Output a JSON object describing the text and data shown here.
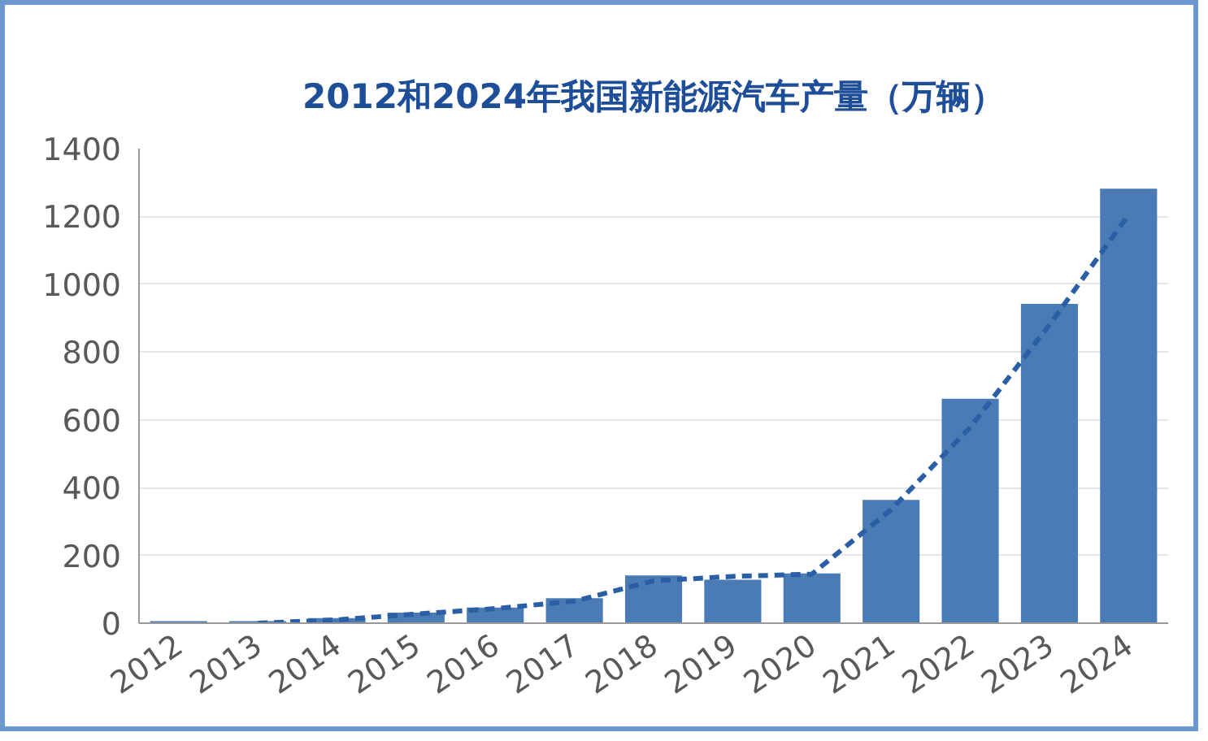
{
  "chart_data": {
    "type": "bar",
    "title": "2012和2024年我国新能源汽车产量（万辆）",
    "categories": [
      "2012",
      "2013",
      "2014",
      "2015",
      "2016",
      "2017",
      "2018",
      "2019",
      "2020",
      "2021",
      "2022",
      "2023",
      "2024"
    ],
    "series": [
      {
        "color": "#4a7bb5",
        "values": [
          6,
          6,
          15,
          31,
          46,
          74,
          141,
          128,
          147,
          364,
          662,
          942,
          1282
        ]
      },
      {
        "type": "line",
        "color": "#2a5fa6",
        "line_style": "dashed",
        "values": [
          null,
          0,
          10,
          27,
          43,
          65,
          125,
          138,
          145,
          335,
          578,
          880,
          1205
        ]
      }
    ],
    "ylim": [
      0,
      1400
    ],
    "yticks": [
      0,
      200,
      400,
      600,
      800,
      1000,
      1200,
      1400
    ],
    "grid": "y"
  }
}
